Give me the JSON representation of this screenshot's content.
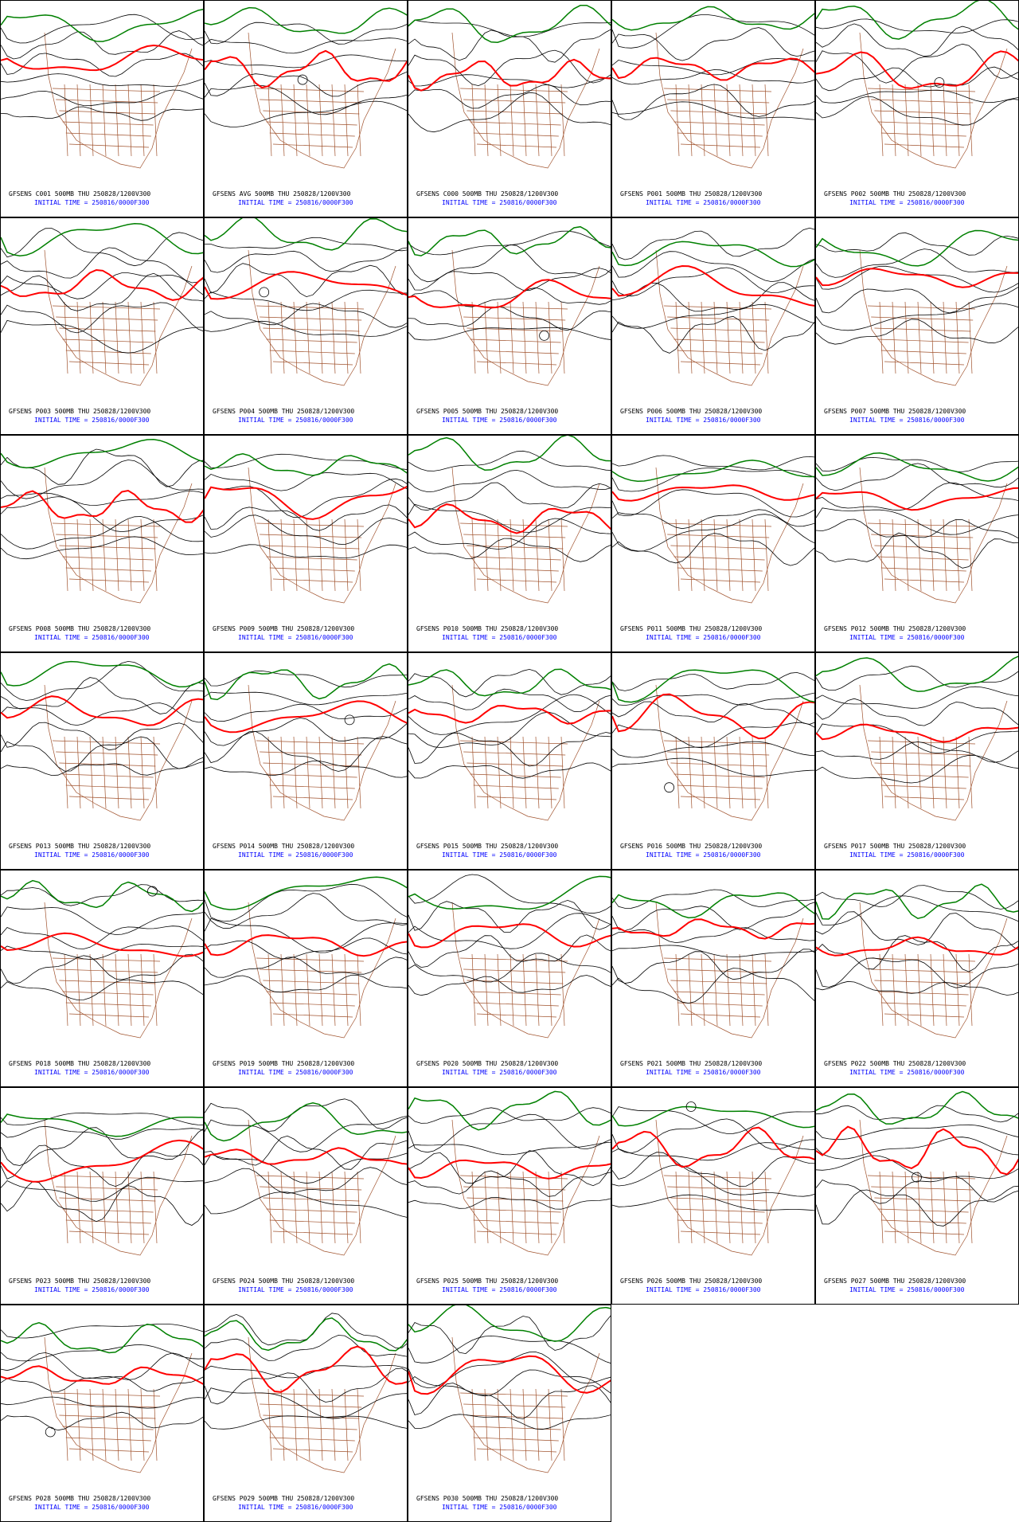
{
  "panels": [
    {
      "line1": "GFSENS C001 500MB THU 250828/1200V300",
      "line2": "INITIAL TIME = 250816/0000F300"
    },
    {
      "line1": "GFSENS AVG 500MB THU 250828/1200V300",
      "line2": "INITIAL TIME = 250816/0000F300"
    },
    {
      "line1": "GFSENS C000 500MB THU 250828/1200V300",
      "line2": "INITIAL TIME = 250816/0000F300"
    },
    {
      "line1": "GFSENS P001 500MB THU 250828/1200V300",
      "line2": "INITIAL TIME = 250816/0000F300"
    },
    {
      "line1": "GFSENS P002 500MB THU 250828/1200V300",
      "line2": "INITIAL TIME = 250816/0000F300"
    },
    {
      "line1": "GFSENS P003 500MB THU 250828/1200V300",
      "line2": "INITIAL TIME = 250816/0000F300"
    },
    {
      "line1": "GFSENS P004 500MB THU 250828/1200V300",
      "line2": "INITIAL TIME = 250816/0000F300"
    },
    {
      "line1": "GFSENS P005 500MB THU 250828/1200V300",
      "line2": "INITIAL TIME = 250816/0000F300"
    },
    {
      "line1": "GFSENS P006 500MB THU 250828/1200V300",
      "line2": "INITIAL TIME = 250816/0000F300"
    },
    {
      "line1": "GFSENS P007 500MB THU 250828/1200V300",
      "line2": "INITIAL TIME = 250816/0000F300"
    },
    {
      "line1": "GFSENS P008 500MB THU 250828/1200V300",
      "line2": "INITIAL TIME = 250816/0000F300"
    },
    {
      "line1": "GFSENS P009 500MB THU 250828/1200V300",
      "line2": "INITIAL TIME = 250816/0000F300"
    },
    {
      "line1": "GFSENS P010 500MB THU 250828/1200V300",
      "line2": "INITIAL TIME = 250816/0000F300"
    },
    {
      "line1": "GFSENS P011 500MB THU 250828/1200V300",
      "line2": "INITIAL TIME = 250816/0000F300"
    },
    {
      "line1": "GFSENS P012 500MB THU 250828/1200V300",
      "line2": "INITIAL TIME = 250816/0000F300"
    },
    {
      "line1": "GFSENS P013 500MB THU 250828/1200V300",
      "line2": "INITIAL TIME = 250816/0000F300"
    },
    {
      "line1": "GFSENS P014 500MB THU 250828/1200V300",
      "line2": "INITIAL TIME = 250816/0000F300"
    },
    {
      "line1": "GFSENS P015 500MB THU 250828/1200V300",
      "line2": "INITIAL TIME = 250816/0000F300"
    },
    {
      "line1": "GFSENS P016 500MB THU 250828/1200V300",
      "line2": "INITIAL TIME = 250816/0000F300"
    },
    {
      "line1": "GFSENS P017 500MB THU 250828/1200V300",
      "line2": "INITIAL TIME = 250816/0000F300"
    },
    {
      "line1": "GFSENS P018 500MB THU 250828/1200V300",
      "line2": "INITIAL TIME = 250816/0000F300"
    },
    {
      "line1": "GFSENS P019 500MB THU 250828/1200V300",
      "line2": "INITIAL TIME = 250816/0000F300"
    },
    {
      "line1": "GFSENS P020 500MB THU 250828/1200V300",
      "line2": "INITIAL TIME = 250816/0000F300"
    },
    {
      "line1": "GFSENS P021 500MB THU 250828/1200V300",
      "line2": "INITIAL TIME = 250816/0000F300"
    },
    {
      "line1": "GFSENS P022 500MB THU 250828/1200V300",
      "line2": "INITIAL TIME = 250816/0000F300"
    },
    {
      "line1": "GFSENS P023 500MB THU 250828/1200V300",
      "line2": "INITIAL TIME = 250816/0000F300"
    },
    {
      "line1": "GFSENS P024 500MB THU 250828/1200V300",
      "line2": "INITIAL TIME = 250816/0000F300"
    },
    {
      "line1": "GFSENS P025 500MB THU 250828/1200V300",
      "line2": "INITIAL TIME = 250816/0000F300"
    },
    {
      "line1": "GFSENS P026 500MB THU 250828/1200V300",
      "line2": "INITIAL TIME = 250816/0000F300"
    },
    {
      "line1": "GFSENS P027 500MB THU 250828/1200V300",
      "line2": "INITIAL TIME = 250816/0000F300"
    },
    {
      "line1": "GFSENS P028 500MB THU 250828/1200V300",
      "line2": "INITIAL TIME = 250816/0000F300"
    },
    {
      "line1": "GFSENS P029 500MB THU 250828/1200V300",
      "line2": "INITIAL TIME = 250816/0000F300"
    },
    {
      "line1": "GFSENS P030 500MB THU 250828/1200V300",
      "line2": "INITIAL TIME = 250816/0000F300"
    }
  ]
}
